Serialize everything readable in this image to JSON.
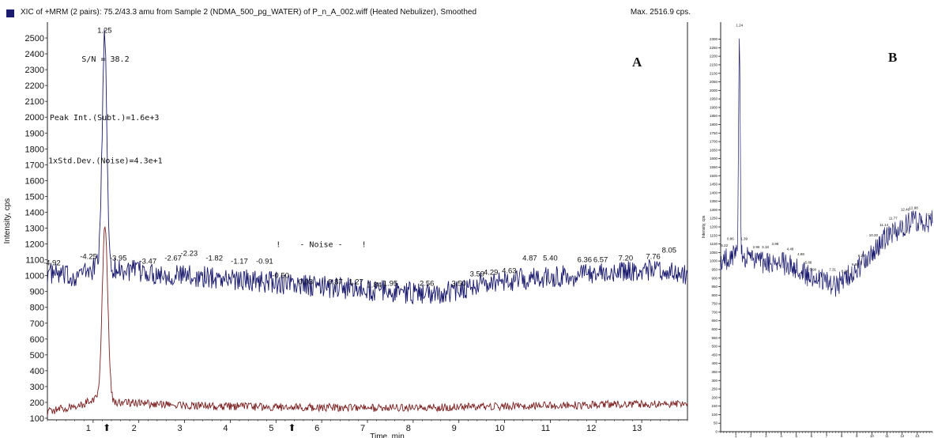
{
  "header": {
    "title": "XIC of +MRM (2 pairs): 75.2/43.3 amu from Sample 2 (NDMA_500_pg_WATER) of P_n_A_002.wiff (Heated Nebulizer), Smoothed",
    "max": "Max. 2516.9 cps."
  },
  "chart_data": [
    {
      "panel": "A",
      "type": "line",
      "xlabel": "Time, min",
      "ylabel": "Intensity, cps",
      "xlim": [
        0,
        14
      ],
      "ylim": [
        90,
        2600
      ],
      "grid": false,
      "x_ticks": [
        "1",
        "2",
        "3",
        "4",
        "5",
        "6",
        "7",
        "8",
        "9",
        "10",
        "11",
        "12",
        "13"
      ],
      "y_ticks": [
        "100",
        "200",
        "300",
        "400",
        "500",
        "600",
        "700",
        "800",
        "900",
        "1000",
        "1100",
        "1200",
        "1300",
        "1400",
        "1500",
        "1600",
        "1700",
        "1800",
        "1900",
        "2000",
        "2100",
        "2200",
        "2300",
        "2400",
        "2500"
      ],
      "series": [
        {
          "color": "#1a1a6e",
          "baseline": [
            [
              0,
              1020
            ],
            [
              0.5,
              990
            ],
            [
              1,
              1040
            ],
            [
              1.1,
              1100
            ],
            [
              1.5,
              1040
            ],
            [
              2.5,
              1010
            ],
            [
              3.5,
              990
            ],
            [
              4.5,
              970
            ],
            [
              5.5,
              940
            ],
            [
              6.5,
              920
            ],
            [
              7.5,
              900
            ],
            [
              8.5,
              880
            ],
            [
              9.5,
              950
            ],
            [
              10.5,
              980
            ],
            [
              11.5,
              1000
            ],
            [
              12.5,
              1030
            ],
            [
              13.5,
              1040
            ],
            [
              13.95,
              1010
            ]
          ],
          "peaks": [
            {
              "x": 1.25,
              "y": 2516.9,
              "width": 0.05
            }
          ]
        },
        {
          "color": "#7a1f1f",
          "baseline": [
            [
              0,
              140
            ],
            [
              0.8,
              190
            ],
            [
              1.05,
              230
            ],
            [
              1.5,
              200
            ],
            [
              3,
              180
            ],
            [
              5,
              170
            ],
            [
              7,
              165
            ],
            [
              9,
              170
            ],
            [
              11,
              180
            ],
            [
              13,
              190
            ],
            [
              13.95,
              195
            ]
          ],
          "peaks": [
            {
              "x": 1.26,
              "y": 1330,
              "width": 0.06
            }
          ]
        }
      ],
      "peak_labels": [
        {
          "x": 1.25,
          "y": 2516.9,
          "label": "1.25"
        },
        {
          "x": 0.1,
          "y": 1050,
          "label": "-4.92"
        },
        {
          "x": 0.9,
          "y": 1090,
          "label": "-4.25"
        },
        {
          "x": 1.55,
          "y": 1080,
          "label": "-3.95"
        },
        {
          "x": 2.2,
          "y": 1060,
          "label": "-3.47"
        },
        {
          "x": 2.75,
          "y": 1080,
          "label": "-2.67"
        },
        {
          "x": 3.1,
          "y": 1110,
          "label": "-2.23"
        },
        {
          "x": 3.65,
          "y": 1080,
          "label": "-1.82"
        },
        {
          "x": 4.2,
          "y": 1060,
          "label": "-1.17"
        },
        {
          "x": 4.75,
          "y": 1060,
          "label": "-0.91"
        },
        {
          "x": 5.1,
          "y": 970,
          "label": "-0.50"
        },
        {
          "x": 5.65,
          "y": 930,
          "label": "0.03"
        },
        {
          "x": 6.3,
          "y": 930,
          "label": "0.87"
        },
        {
          "x": 6.75,
          "y": 930,
          "label": "1.27"
        },
        {
          "x": 7.15,
          "y": 910,
          "label": "1.84"
        },
        {
          "x": 7.5,
          "y": 920,
          "label": "1.95"
        },
        {
          "x": 8.3,
          "y": 920,
          "label": "2.56"
        },
        {
          "x": 9.0,
          "y": 920,
          "label": "3.50"
        },
        {
          "x": 9.4,
          "y": 980,
          "label": "3.59"
        },
        {
          "x": 9.7,
          "y": 990,
          "label": "4.29"
        },
        {
          "x": 10.1,
          "y": 1000,
          "label": "4.63"
        },
        {
          "x": 10.55,
          "y": 1080,
          "label": "4.87"
        },
        {
          "x": 11.0,
          "y": 1080,
          "label": "5.40"
        },
        {
          "x": 11.75,
          "y": 1070,
          "label": "6.36"
        },
        {
          "x": 12.1,
          "y": 1070,
          "label": "6.57"
        },
        {
          "x": 12.65,
          "y": 1080,
          "label": "7.20"
        },
        {
          "x": 13.25,
          "y": 1090,
          "label": "7.76"
        },
        {
          "x": 13.6,
          "y": 1130,
          "label": "8.05"
        }
      ],
      "annotations": [
        {
          "text": "S/N = 38.2",
          "x": 0.75,
          "y": 2350
        },
        {
          "text": "Peak Int.(Subt.)=1.6e+3",
          "x": 0.05,
          "y": 1980
        },
        {
          "text": "1xStd.Dev.(Noise)=4.3e+1",
          "x": 0.02,
          "y": 1710
        },
        {
          "text": "!    - Noise -    !",
          "x": 5.0,
          "y": 1180
        }
      ],
      "arrow_markers": [
        1.3,
        5.35
      ],
      "arrow_glyph": "⬆",
      "panel_label": "A"
    },
    {
      "panel": "B",
      "type": "line",
      "xlabel": "Time, min",
      "ylabel": "Intensity, cps",
      "xlim": [
        0,
        14
      ],
      "ylim": [
        0,
        2400
      ],
      "grid": false,
      "x_ticks": [
        "1",
        "2",
        "3",
        "4",
        "5",
        "6",
        "7",
        "8",
        "9",
        "10",
        "11",
        "12",
        "13"
      ],
      "y_ticks": [
        "0",
        "50",
        "100",
        "150",
        "200",
        "250",
        "300",
        "350",
        "400",
        "450",
        "500",
        "550",
        "600",
        "650",
        "700",
        "750",
        "800",
        "850",
        "900",
        "950",
        "1000",
        "1050",
        "1100",
        "1150",
        "1200",
        "1250",
        "1300",
        "1350",
        "1400",
        "1450",
        "1500",
        "1550",
        "1600",
        "1650",
        "1700",
        "1750",
        "1800",
        "1850",
        "1900",
        "1950",
        "2000",
        "2050",
        "2100",
        "2150",
        "2200",
        "2250",
        "2300"
      ],
      "series": [
        {
          "color": "#1a1a6e",
          "baseline": [
            [
              0,
              1000
            ],
            [
              0.5,
              1010
            ],
            [
              1,
              1060
            ],
            [
              2,
              1010
            ],
            [
              3,
              990
            ],
            [
              4,
              990
            ],
            [
              5,
              960
            ],
            [
              6,
              900
            ],
            [
              7,
              880
            ],
            [
              7.5,
              850
            ],
            [
              8,
              880
            ],
            [
              9,
              950
            ],
            [
              10,
              1050
            ],
            [
              11,
              1150
            ],
            [
              12,
              1200
            ],
            [
              13,
              1240
            ],
            [
              13.95,
              1230
            ]
          ],
          "peaks": [
            {
              "x": 1.24,
              "y": 2360,
              "width": 0.05
            }
          ]
        }
      ],
      "peak_labels": [
        {
          "x": 1.24,
          "y": 2360,
          "label": "1.24"
        },
        {
          "x": 0.25,
          "y": 1070,
          "label": "0.22"
        },
        {
          "x": 0.65,
          "y": 1110,
          "label": "0.86"
        },
        {
          "x": 1.55,
          "y": 1110,
          "label": "1.39"
        },
        {
          "x": 2.35,
          "y": 1060,
          "label": "2.96"
        },
        {
          "x": 2.95,
          "y": 1060,
          "label": "3.18"
        },
        {
          "x": 3.6,
          "y": 1080,
          "label": "3.98"
        },
        {
          "x": 4.6,
          "y": 1050,
          "label": "4.48"
        },
        {
          "x": 5.3,
          "y": 1020,
          "label": "4.88"
        },
        {
          "x": 5.8,
          "y": 970,
          "label": "5.88"
        },
        {
          "x": 6.1,
          "y": 930,
          "label": "5.90"
        },
        {
          "x": 7.4,
          "y": 930,
          "label": "7.31"
        },
        {
          "x": 8.2,
          "y": 920,
          "label": "8.28"
        },
        {
          "x": 8.9,
          "y": 960,
          "label": "8.88"
        },
        {
          "x": 9.3,
          "y": 1010,
          "label": "9.29"
        },
        {
          "x": 10.1,
          "y": 1130,
          "label": "10.20"
        },
        {
          "x": 10.8,
          "y": 1190,
          "label": "11.14"
        },
        {
          "x": 11.4,
          "y": 1230,
          "label": "11.77"
        },
        {
          "x": 12.2,
          "y": 1280,
          "label": "12.46"
        },
        {
          "x": 12.75,
          "y": 1290,
          "label": "12.88"
        },
        {
          "x": 13.8,
          "y": 1250,
          "label": "13"
        }
      ],
      "panel_label": "B"
    }
  ]
}
